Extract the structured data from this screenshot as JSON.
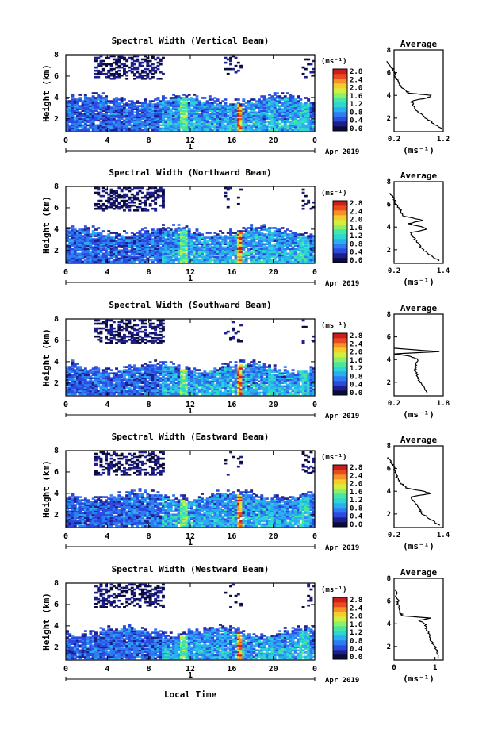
{
  "figure": {
    "date_label": "Apr 2019",
    "xlabel": "Local Time",
    "ylabel": "Height (km)",
    "x_ticks": [
      "0",
      "4",
      "8",
      "12",
      "16",
      "20",
      "0"
    ],
    "day_label": "1",
    "y_ticks": [
      "2",
      "4",
      "6",
      "8"
    ],
    "colorbar_unit": "(ms⁻¹)",
    "colorbar_ticks": [
      "0.0",
      "0.4",
      "0.8",
      "1.2",
      "1.6",
      "2.0",
      "2.4",
      "2.8"
    ],
    "colorbar_colors": [
      "#0b0b3d",
      "#1c1f8c",
      "#2b4be0",
      "#2f7cf2",
      "#29aef0",
      "#2dd6d2",
      "#47e6a2",
      "#8cf06a",
      "#d3ef3d",
      "#f7cc2a",
      "#f59225",
      "#ea4a21",
      "#cc1f1a"
    ],
    "avg_title": "Average",
    "avg_unit": "(ms⁻¹)",
    "avg_y_ticks": [
      "2",
      "4",
      "6",
      "8"
    ]
  },
  "chart_data": [
    {
      "type": "heatmap",
      "title": "Spectral Width (Vertical Beam)",
      "xlabel": "Local Time",
      "ylabel": "Height (km)",
      "xlim": [
        0,
        24
      ],
      "ylim": [
        0.8,
        8.0
      ],
      "zlim": [
        0.0,
        2.8
      ],
      "colorbar_label": "(ms⁻¹)",
      "average_profile": {
        "xlim": [
          0.2,
          1.2
        ],
        "x_ticks": [
          "0.2",
          "1.2"
        ],
        "height_km": [
          1.0,
          1.5,
          2.0,
          2.5,
          3.0,
          3.5,
          3.8,
          4.0,
          4.2,
          4.5,
          5.0,
          5.5,
          6.0,
          6.5,
          7.0
        ],
        "values": [
          1.2,
          1.0,
          0.85,
          0.7,
          0.6,
          0.55,
          0.9,
          0.95,
          0.5,
          0.4,
          0.3,
          0.25,
          0.2,
          0.15,
          0.05
        ]
      }
    },
    {
      "type": "heatmap",
      "title": "Spectral Width (Northward Beam)",
      "xlabel": "Local Time",
      "ylabel": "Height (km)",
      "xlim": [
        0,
        24
      ],
      "ylim": [
        0.8,
        8.0
      ],
      "zlim": [
        0.0,
        2.8
      ],
      "colorbar_label": "(ms⁻¹)",
      "average_profile": {
        "xlim": [
          0.2,
          1.4
        ],
        "x_ticks": [
          "0.2",
          "1.4"
        ],
        "height_km": [
          1.0,
          1.5,
          2.0,
          2.5,
          3.0,
          3.5,
          3.8,
          4.0,
          4.3,
          4.6,
          5.0,
          5.5,
          6.0,
          6.5,
          7.0
        ],
        "values": [
          1.3,
          1.1,
          0.9,
          0.8,
          0.7,
          0.6,
          1.0,
          0.9,
          0.55,
          0.9,
          0.4,
          0.35,
          0.25,
          0.2,
          0.1
        ]
      }
    },
    {
      "type": "heatmap",
      "title": "Spectral Width (Southward Beam)",
      "xlabel": "Local Time",
      "ylabel": "Height (km)",
      "xlim": [
        0,
        24
      ],
      "ylim": [
        0.8,
        8.0
      ],
      "zlim": [
        0.0,
        2.8
      ],
      "colorbar_label": "(ms⁻¹)",
      "average_profile": {
        "xlim": [
          0.2,
          1.8
        ],
        "x_ticks": [
          "0.2",
          "1.8"
        ],
        "height_km": [
          1.0,
          1.5,
          2.0,
          2.5,
          3.0,
          3.5,
          4.0,
          4.3,
          4.5,
          4.7,
          5.0
        ],
        "values": [
          1.3,
          1.2,
          1.05,
          0.95,
          0.9,
          0.9,
          1.0,
          0.7,
          0.2,
          1.7,
          0.2
        ]
      }
    },
    {
      "type": "heatmap",
      "title": "Spectral Width (Eastward Beam)",
      "xlabel": "Local Time",
      "ylabel": "Height (km)",
      "xlim": [
        0,
        24
      ],
      "ylim": [
        0.8,
        8.0
      ],
      "zlim": [
        0.0,
        2.8
      ],
      "colorbar_label": "(ms⁻¹)",
      "average_profile": {
        "xlim": [
          0.2,
          1.4
        ],
        "x_ticks": [
          "0.2",
          "1.4"
        ],
        "height_km": [
          1.0,
          1.5,
          2.0,
          2.5,
          3.0,
          3.5,
          3.8,
          4.0,
          4.3,
          4.6,
          5.0,
          5.5,
          6.0,
          6.5,
          7.0
        ],
        "values": [
          1.3,
          1.1,
          0.9,
          0.8,
          0.7,
          0.6,
          1.1,
          0.9,
          0.5,
          0.4,
          0.3,
          0.25,
          0.2,
          0.15,
          0.05
        ]
      }
    },
    {
      "type": "heatmap",
      "title": "Spectral Width (Westward Beam)",
      "xlabel": "Local Time",
      "ylabel": "Height (km)",
      "xlim": [
        0,
        24
      ],
      "ylim": [
        0.8,
        8.0
      ],
      "zlim": [
        0.0,
        2.8
      ],
      "colorbar_label": "(ms⁻¹)",
      "average_profile": {
        "xlim": [
          0,
          1.2
        ],
        "x_ticks": [
          "0",
          "1"
        ],
        "height_km": [
          1.0,
          1.5,
          2.0,
          2.5,
          3.0,
          3.5,
          4.0,
          4.3,
          4.5,
          4.7,
          5.0,
          5.5,
          6.0,
          6.5,
          7.0
        ],
        "values": [
          1.1,
          1.05,
          1.0,
          0.9,
          0.85,
          0.8,
          0.75,
          0.6,
          0.9,
          0.2,
          0.15,
          0.1,
          0.1,
          0.05,
          0.05
        ]
      }
    }
  ]
}
